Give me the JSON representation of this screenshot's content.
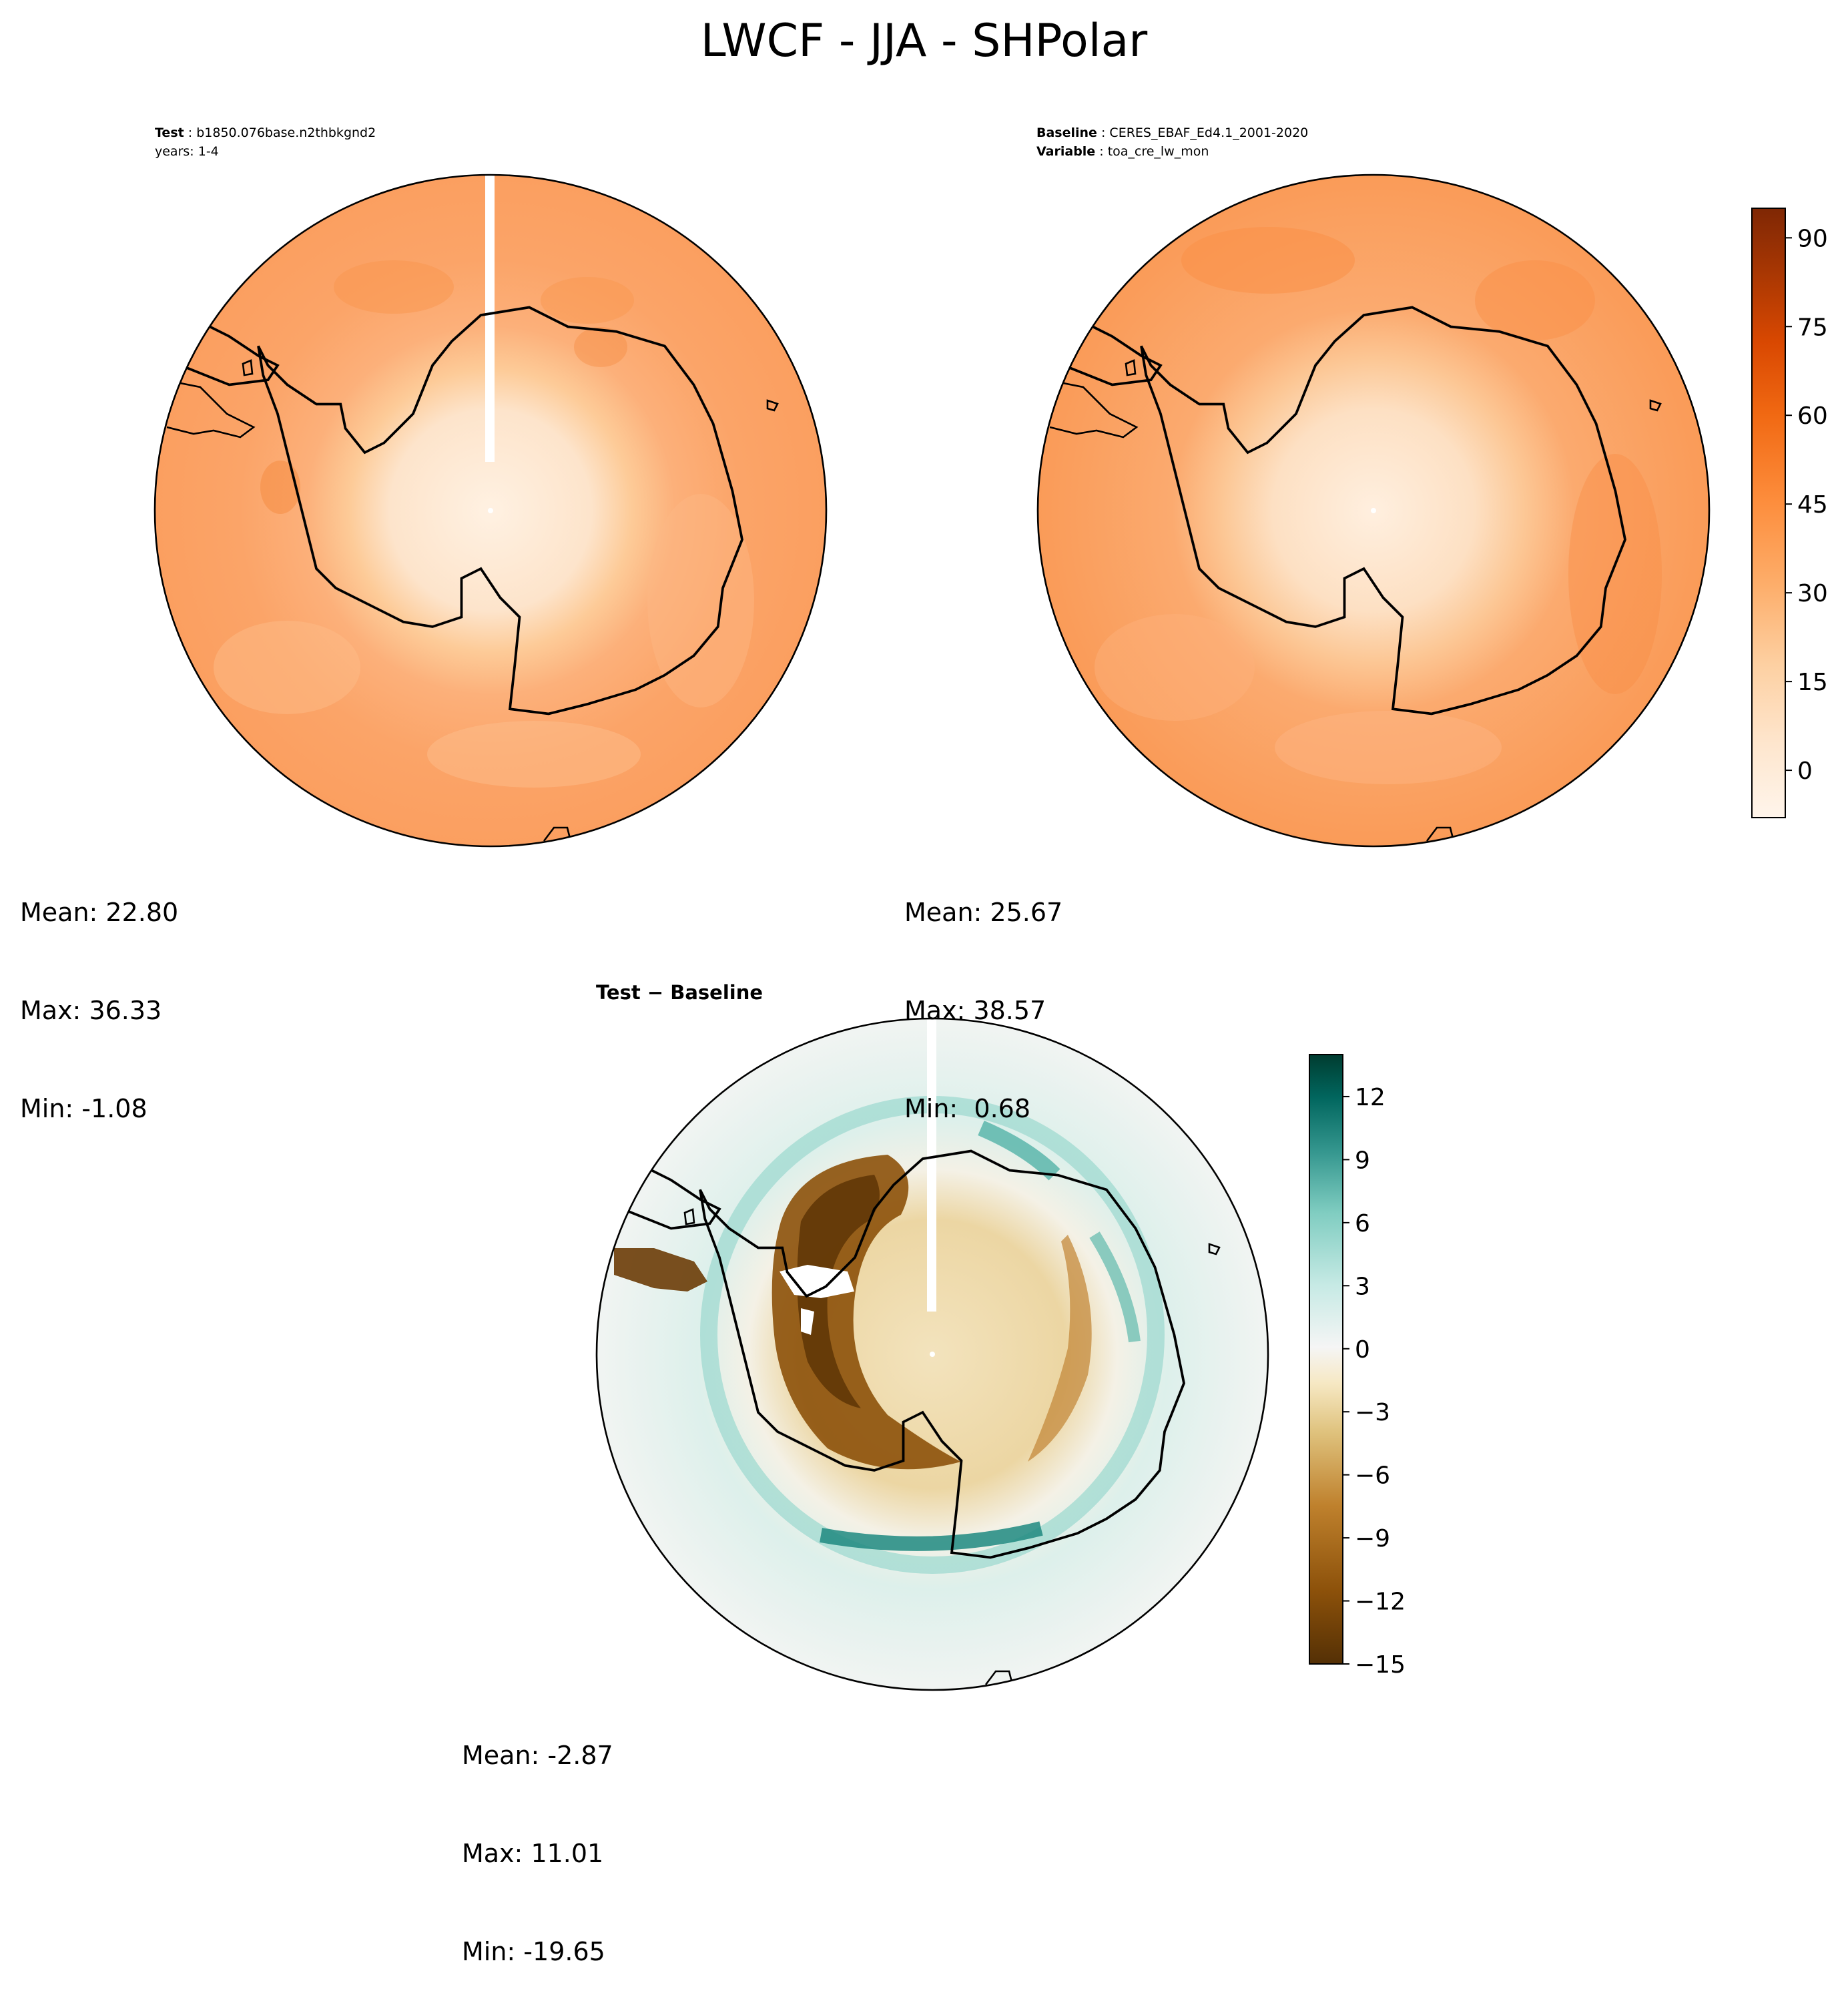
{
  "title": "LWCF - JJA - SHPolar",
  "test": {
    "label": "Test",
    "case": "b1850.076base.n2thbkgnd2",
    "years": "years: 1-4",
    "stats": {
      "mean": "Mean: 22.80",
      "max": "Max: 36.33",
      "min": "Min: -1.08"
    }
  },
  "baseline": {
    "label": "Baseline",
    "case": "CERES_EBAF_Ed4.1_2001-2020",
    "variable_label": "Variable",
    "variable": "toa_cre_lw_mon",
    "stats": {
      "mean": "Mean: 25.67",
      "max": "Max: 38.57",
      "min": "Min:  0.68"
    }
  },
  "difference": {
    "title": "Test − Baseline",
    "stats": {
      "mean": "Mean: -2.87",
      "max": "Max: 11.01",
      "min": "Min: -19.65"
    }
  },
  "chart_data": [
    {
      "type": "heatmap",
      "panel": "test",
      "projection": "south polar stereographic",
      "field": "LWCF",
      "colormap": "Oranges",
      "stats": {
        "mean": 22.8,
        "max": 36.33,
        "min": -1.08
      }
    },
    {
      "type": "heatmap",
      "panel": "baseline",
      "projection": "south polar stereographic",
      "field": "LWCF",
      "colormap": "Oranges",
      "stats": {
        "mean": 25.67,
        "max": 38.57,
        "min": 0.68
      },
      "colorbar": {
        "range": [
          -8,
          95
        ],
        "ticks": [
          "0",
          "15",
          "30",
          "45",
          "60",
          "75",
          "90"
        ],
        "tick_values": [
          0,
          15,
          30,
          45,
          60,
          75,
          90
        ]
      }
    },
    {
      "type": "heatmap",
      "panel": "difference",
      "projection": "south polar stereographic",
      "field": "LWCF difference",
      "colormap": "BrBG",
      "stats": {
        "mean": -2.87,
        "max": 11.01,
        "min": -19.65
      },
      "colorbar": {
        "range": [
          -15,
          14
        ],
        "ticks": [
          "12",
          "9",
          "6",
          "3",
          "0",
          "−3",
          "−6",
          "−9",
          "−12",
          "−15"
        ],
        "tick_values": [
          12,
          9,
          6,
          3,
          0,
          -3,
          -6,
          -9,
          -12,
          -15
        ]
      }
    }
  ],
  "colors": {
    "oranges": [
      "#fff5eb",
      "#fee6ce",
      "#fdd0a2",
      "#fdae6b",
      "#fd8d3c",
      "#f16913",
      "#d94801",
      "#a63603",
      "#7f2704"
    ],
    "brbg": [
      "#543005",
      "#8c510a",
      "#bf812d",
      "#dfc27d",
      "#f6e8c3",
      "#f5f5f5",
      "#c7eae5",
      "#80cdc1",
      "#35978f",
      "#01665e",
      "#003c30"
    ]
  }
}
